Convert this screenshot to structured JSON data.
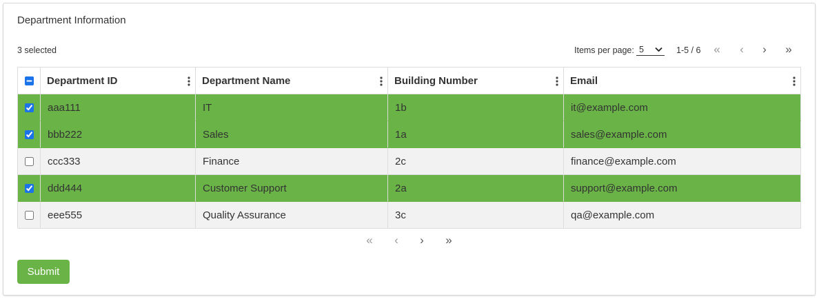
{
  "card": {
    "title": "Department Information"
  },
  "toolbar": {
    "selected_label": "3 selected",
    "items_per_page_label": "Items per page:",
    "items_per_page": 5,
    "range": "1-5 / 6",
    "pager": [
      "«",
      "‹",
      "›",
      "»"
    ]
  },
  "table": {
    "selected_color": "#6ab347",
    "row_color": "#f2f2f2",
    "columns": [
      "Department ID",
      "Department Name",
      "Building Number",
      "Email"
    ],
    "rows": [
      {
        "selected": true,
        "cells": [
          "aaa111",
          "IT",
          "1b",
          "it@example.com"
        ]
      },
      {
        "selected": true,
        "cells": [
          "bbb222",
          "Sales",
          "1a",
          "sales@example.com"
        ]
      },
      {
        "selected": false,
        "cells": [
          "ccc333",
          "Finance",
          "2c",
          "finance@example.com"
        ]
      },
      {
        "selected": true,
        "cells": [
          "ddd444",
          "Customer Support",
          "2a",
          "support@example.com"
        ]
      },
      {
        "selected": false,
        "cells": [
          "eee555",
          "Quality Assurance",
          "3c",
          "qa@example.com"
        ]
      }
    ]
  },
  "bottom_pager": [
    "«",
    "‹",
    "›",
    "»"
  ],
  "submit": "Submit"
}
